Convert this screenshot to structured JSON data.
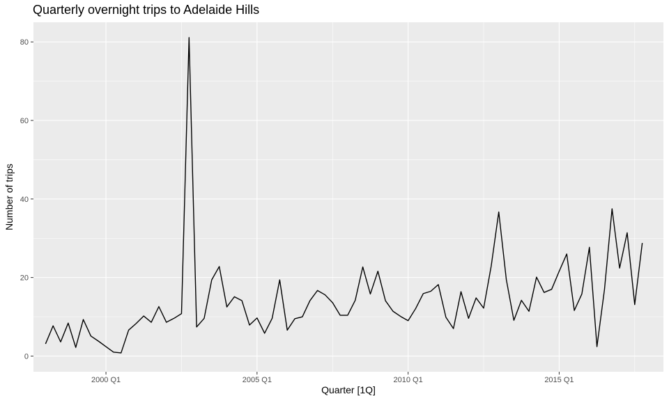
{
  "chart_data": {
    "type": "line",
    "title": "Quarterly overnight trips to Adelaide Hills",
    "xlabel": "Quarter [1Q]",
    "ylabel": "Number of trips",
    "x_tick_labels": [
      "2000 Q1",
      "2005 Q1",
      "2010 Q1",
      "2015 Q1"
    ],
    "x_tick_positions": [
      2000,
      2005,
      2010,
      2015
    ],
    "y_ticks": [
      0,
      20,
      40,
      60,
      80
    ],
    "xlim": [
      1997.6,
      2018.45
    ],
    "ylim": [
      -4.0,
      85.0
    ],
    "grid": true,
    "legend": "none",
    "colors": {
      "panel": "#ebebeb",
      "grid": "#ffffff",
      "line": "#000000",
      "tick": "#333333"
    },
    "series": [
      {
        "x": [
          1998.0,
          1998.25,
          1998.5,
          1998.75,
          1999.0,
          1999.25,
          1999.5,
          1999.75,
          2000.0,
          2000.25,
          2000.5,
          2000.75,
          2001.0,
          2001.25,
          2001.5,
          2001.75,
          2002.0,
          2002.25,
          2002.5,
          2002.75,
          2003.0,
          2003.25,
          2003.5,
          2003.75,
          2004.0,
          2004.25,
          2004.5,
          2004.75,
          2005.0,
          2005.25,
          2005.5,
          2005.75,
          2006.0,
          2006.25,
          2006.5,
          2006.75,
          2007.0,
          2007.25,
          2007.5,
          2007.75,
          2008.0,
          2008.25,
          2008.5,
          2008.75,
          2009.0,
          2009.25,
          2009.5,
          2009.75,
          2010.0,
          2010.25,
          2010.5,
          2010.75,
          2011.0,
          2011.25,
          2011.5,
          2011.75,
          2012.0,
          2012.25,
          2012.5,
          2012.75,
          2013.0,
          2013.25,
          2013.5,
          2013.75,
          2014.0,
          2014.25,
          2014.5,
          2014.75,
          2015.0,
          2015.25,
          2015.5,
          2015.75,
          2016.0,
          2016.25,
          2016.5,
          2016.75,
          2017.0,
          2017.25,
          2017.5,
          2017.75
        ],
        "y": [
          3.1,
          7.7,
          3.6,
          8.4,
          2.2,
          9.3,
          5.1,
          3.8,
          2.4,
          1.0,
          0.8,
          6.6,
          8.3,
          10.2,
          8.6,
          12.6,
          8.6,
          9.6,
          10.8,
          81.1,
          7.4,
          9.6,
          19.4,
          22.8,
          12.5,
          15.1,
          14.1,
          7.9,
          9.7,
          5.8,
          9.6,
          19.4,
          6.6,
          9.5,
          10.0,
          14.1,
          16.7,
          15.6,
          13.6,
          10.4,
          10.4,
          14.2,
          22.7,
          15.8,
          21.6,
          14.1,
          11.4,
          10.1,
          9.0,
          12.1,
          15.9,
          16.5,
          18.2,
          9.9,
          7.0,
          16.4,
          9.6,
          14.8,
          12.2,
          22.9,
          36.7,
          19.5,
          9.1,
          14.2,
          11.4,
          20.1,
          16.2,
          17.0,
          21.6,
          26.0,
          11.6,
          15.8,
          27.7,
          2.4,
          17.0,
          37.5,
          22.4,
          31.4,
          13.1,
          28.8
        ]
      }
    ]
  }
}
